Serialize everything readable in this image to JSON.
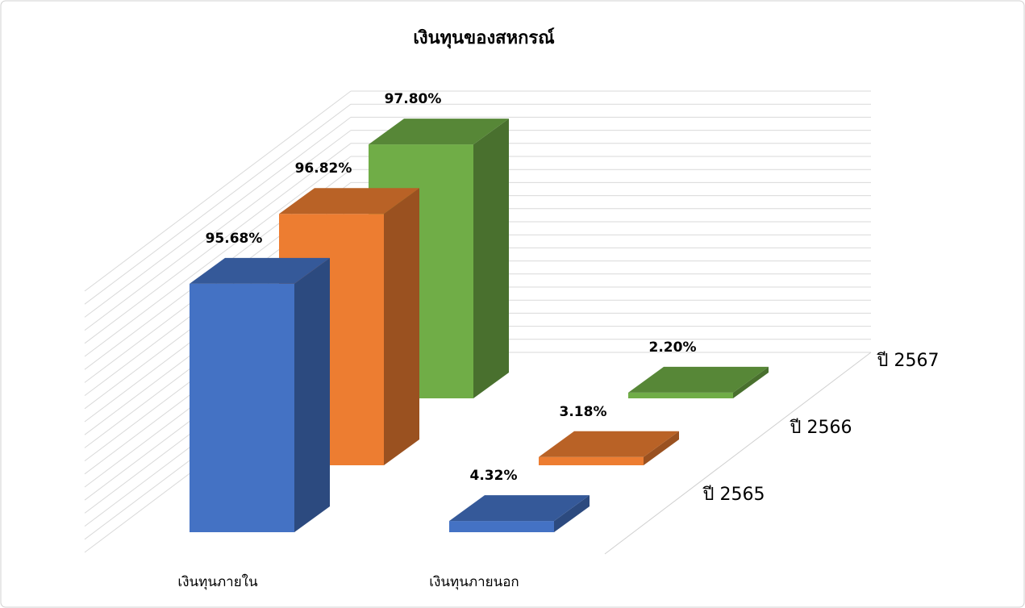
{
  "chart_data": {
    "type": "bar3d",
    "title": "เงินทุนของสหกรณ์",
    "categories": [
      "เงินทุนภายใน",
      "เงินทุนภายนอก"
    ],
    "series": [
      {
        "name": "ปี 2565",
        "color": "#4472c4",
        "values": [
          95.68,
          4.32
        ],
        "value_labels": [
          "95.68%",
          "4.32%"
        ]
      },
      {
        "name": "ปี 2566",
        "color": "#ed7d31",
        "values": [
          96.82,
          3.18
        ],
        "value_labels": [
          "96.82%",
          "3.18%"
        ]
      },
      {
        "name": "ปี 2567",
        "color": "#70ad47",
        "values": [
          97.8,
          2.2
        ],
        "value_labels": [
          "97.80%",
          "2.20%"
        ]
      }
    ],
    "ylim": [
      0,
      100
    ]
  }
}
